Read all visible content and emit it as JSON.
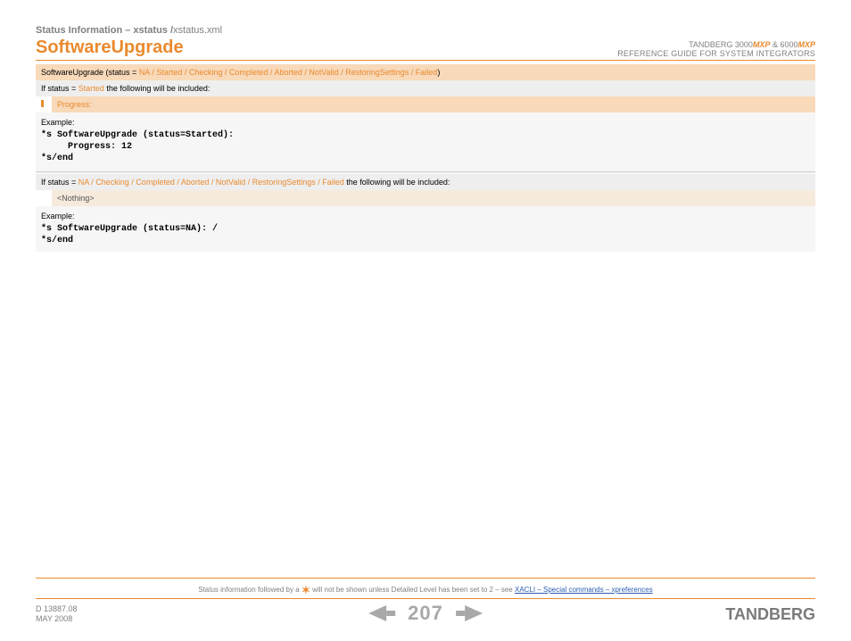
{
  "header": {
    "breadcrumb_prefix": "Status Information – xstatus /",
    "breadcrumb_file": "xstatus.xml",
    "title": "SoftwareUpgrade",
    "right_line1_a": "TANDBERG 3000",
    "right_line1_mxp1": "MXP",
    "right_line1_b": " & 6000",
    "right_line1_mxp2": "MXP",
    "right_line2": "REFERENCE GUIDE FOR SYSTEM INTEGRATORS"
  },
  "band1": {
    "prefix": "SoftwareUpgrade (status = ",
    "values": "NA / Started / Checking / Completed / Aborted / NotValid / RestoringSettings / Failed",
    "suffix": ")"
  },
  "if1": {
    "prefix": "If status = ",
    "value": "Started",
    "suffix": " the following will be included:"
  },
  "progress_label": "Progress:",
  "example_label": "Example:",
  "example1_code": "*s SoftwareUpgrade (status=Started):\n     Progress: 12\n*s/end",
  "if2": {
    "prefix": "If status = ",
    "value": "NA / Checking / Completed / Aborted / NotValid / RestoringSettings / Failed",
    "suffix": " the following will be included:"
  },
  "nothing_label": "<Nothing>",
  "example2_code": "*s SoftwareUpgrade (status=NA): /\n*s/end",
  "footer": {
    "note_before": "Status information followed by a ",
    "note_after": " will not be shown unless Detailed Level has been set to 2 – see ",
    "link_text": "XACLI – Special commands – xpreferences",
    "doc_id": "D 13887.08",
    "doc_date": "MAY 2008",
    "page_number": "207",
    "brand": "TANDBERG"
  },
  "colors": {
    "accent": "#e98a2f",
    "band_bg": "#f8d9b9",
    "grey_bg": "#eeeeee",
    "light_band": "#f6eadd",
    "content_bg": "#f6f6f6",
    "muted": "#808080",
    "arrow": "#a8a8a8",
    "link": "#2a5db0"
  }
}
